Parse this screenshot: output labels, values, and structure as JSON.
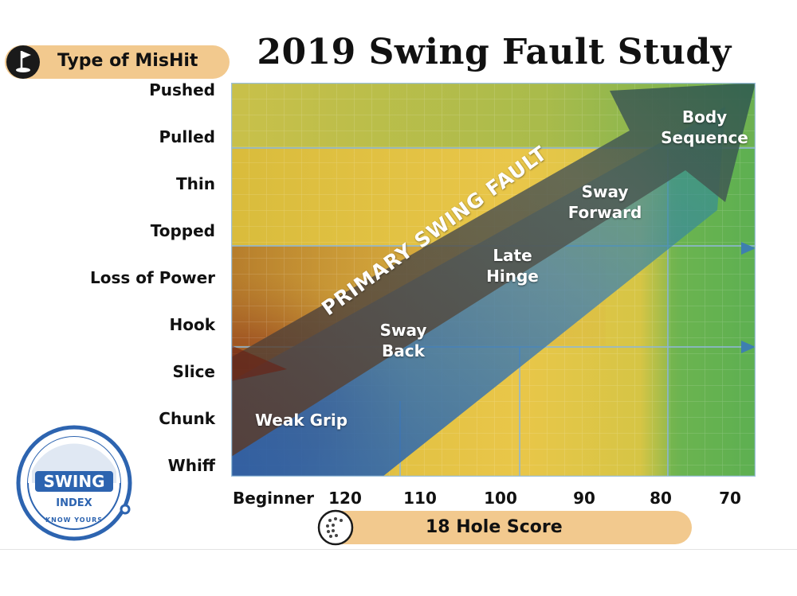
{
  "title": "2019 Swing Fault Study",
  "y_axis_label": "Type of MisHit",
  "x_axis_label": "18 Hole Score",
  "logo": {
    "text_top": "SWING",
    "text_mid": "INDEX",
    "tagline": "KNOW YOURS"
  },
  "colors": {
    "pill": "#f2c98e",
    "green": "#62b556",
    "yellow": "#e8c64a",
    "brown": "#8a4b22",
    "blue": "#2e6fb0"
  },
  "chart_data": {
    "type": "heatmap",
    "title": "2019 Swing Fault Study",
    "xlabel": "18 Hole Score",
    "ylabel": "Type of MisHit",
    "x_categories": [
      "Beginner",
      "120",
      "110",
      "100",
      "90",
      "80",
      "70"
    ],
    "y_categories": [
      "Pushed",
      "Pulled",
      "Thin",
      "Topped",
      "Loss of Power",
      "Hook",
      "Slice",
      "Chunk",
      "Whiff"
    ],
    "arrow_label": "PRIMARY SWING FAULT",
    "faults": [
      {
        "name": "Weak Grip",
        "score": "120"
      },
      {
        "name": "Sway Back",
        "score": "110"
      },
      {
        "name": "Late Hinge",
        "score": "100"
      },
      {
        "name": "Sway Forward",
        "score": "90"
      },
      {
        "name": "Body Sequence",
        "score": "80"
      }
    ]
  }
}
